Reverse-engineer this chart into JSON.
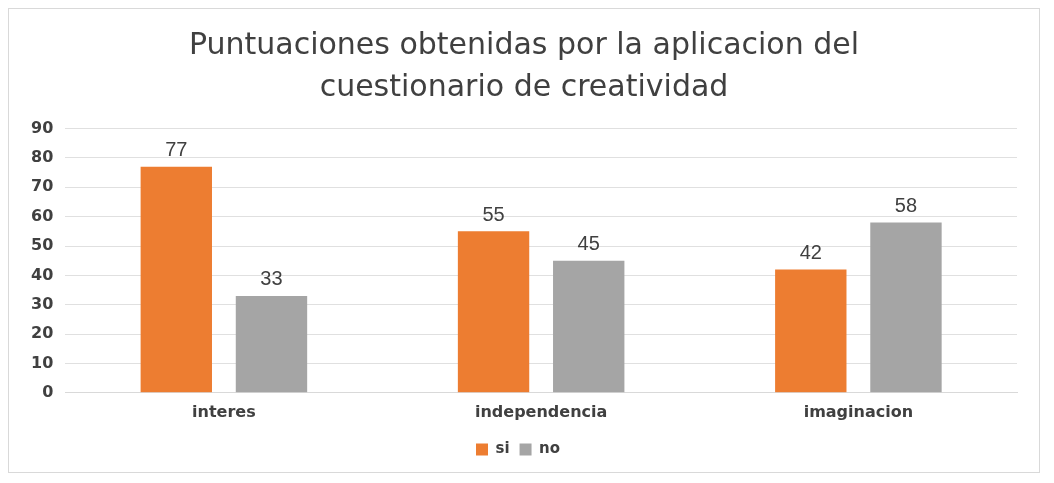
{
  "chart_data": {
    "type": "bar",
    "title": "Puntuaciones obtenidas por la aplicacion del cuestionario de creatividad",
    "categories": [
      "interes",
      "independencia",
      "imaginacion"
    ],
    "series": [
      {
        "name": "si",
        "color": "#ed7d31",
        "values": [
          77,
          55,
          42
        ]
      },
      {
        "name": "no",
        "color": "#a5a5a5",
        "values": [
          33,
          45,
          58
        ]
      }
    ],
    "ylim": [
      0,
      90
    ],
    "yticks": [
      0,
      10,
      20,
      30,
      40,
      50,
      60,
      70,
      80,
      90
    ],
    "grid": "y",
    "legend": "bottom",
    "data_labels": true
  }
}
